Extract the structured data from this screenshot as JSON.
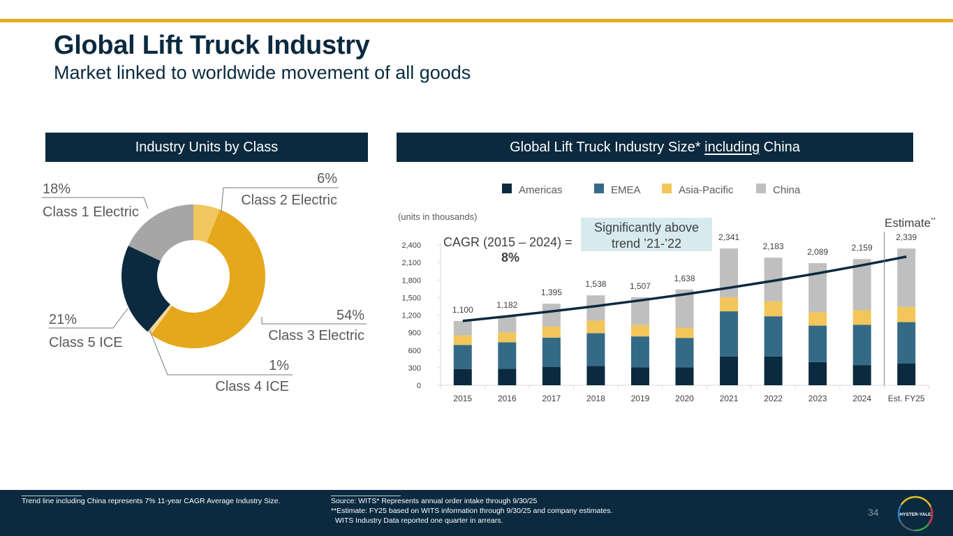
{
  "slide": {
    "title": "Global Lift Truck Industry",
    "subtitle": "Market linked to worldwide movement of all goods",
    "accent_color": "#e2ab23",
    "brand_navy": "#0b2a3f",
    "page_number": "34",
    "logo_text": "HYSTER-YALE"
  },
  "left_panel": {
    "header": "Industry Units by Class"
  },
  "right_panel": {
    "header_prefix": "Global Lift Truck Industry Size* ",
    "header_underlined": "including",
    "header_suffix": " China",
    "units_note": "(units in thousands)",
    "cagr_label": "CAGR (2015 – 2024) =",
    "cagr_value": "8%",
    "callout_line1": "Significantly above",
    "callout_line2": "trend ’21-’22",
    "estimate_label": "Estimate",
    "estimate_marker": "**"
  },
  "footer": {
    "left_note": "Trend line including China represents 7% 11-year CAGR Average Industry Size.",
    "source_line1": "Source: WITS* Represents annual order intake through 9/30/25",
    "source_line2": "**Estimate: FY25 based on WITS information through 9/30/25 and company estimates.",
    "source_line3": "WITS Industry Data reported one quarter in arrears."
  },
  "chart_data": [
    {
      "type": "pie",
      "variant": "donut",
      "title": "Industry Units by Class",
      "unit": "%",
      "slices": [
        {
          "label": "Class 2 Electric",
          "value": 6,
          "display": "6%",
          "color": "#f0c75e"
        },
        {
          "label": "Class 3 Electric",
          "value": 54,
          "display": "54%",
          "color": "#e5a71b"
        },
        {
          "label": "Class 4 ICE",
          "value": 1,
          "display": "1%",
          "color": "#f3d89a"
        },
        {
          "label": "Class 5 ICE",
          "value": 21,
          "display": "21%",
          "color": "#0b2a3f"
        },
        {
          "label": "Class 1 Electric",
          "value": 18,
          "display": "18%",
          "color": "#a6a6a6"
        }
      ]
    },
    {
      "type": "bar",
      "stacked": true,
      "title": "Global Lift Truck Industry Size* including China",
      "ylabel": "(units in thousands)",
      "xlabel": "",
      "categories": [
        "2015",
        "2016",
        "2017",
        "2018",
        "2019",
        "2020",
        "2021",
        "2022",
        "2023",
        "2024",
        "Est. FY25"
      ],
      "ylim": [
        0,
        2400
      ],
      "yticks": [
        0,
        300,
        600,
        900,
        1200,
        1500,
        1800,
        2100,
        2400
      ],
      "ytick_labels": [
        "0",
        "300",
        "600",
        "900",
        "1,200",
        "1,500",
        "1,800",
        "2,100",
        "2,400"
      ],
      "legend": "top-center",
      "grid": false,
      "series": [
        {
          "name": "Americas",
          "color": "#0b2a3f",
          "values": [
            275,
            280,
            315,
            330,
            305,
            305,
            490,
            490,
            395,
            345,
            370
          ]
        },
        {
          "name": "EMEA",
          "color": "#356a87",
          "values": [
            415,
            455,
            500,
            560,
            530,
            505,
            775,
            690,
            625,
            690,
            710
          ]
        },
        {
          "name": "Asia-Pacific",
          "color": "#f2c65a",
          "values": [
            165,
            170,
            190,
            215,
            195,
            175,
            240,
            255,
            230,
            250,
            260
          ]
        },
        {
          "name": "China",
          "color": "#bfbfbf",
          "values": [
            245,
            277,
            390,
            433,
            477,
            653,
            836,
            748,
            839,
            874,
            999
          ]
        }
      ],
      "totals": [
        1100,
        1182,
        1395,
        1538,
        1507,
        1638,
        2341,
        2183,
        2089,
        2159,
        2339
      ],
      "total_labels": [
        "1,100",
        "1,182",
        "1,395",
        "1,538",
        "1,507",
        "1,638",
        "2,341",
        "2,183",
        "2,089",
        "2,159",
        "2,339"
      ],
      "trend_line": {
        "name": "Trend line",
        "color": "#0b2a3f",
        "start_value": 1100,
        "end_value": 2200
      },
      "estimate_divider_after": "2024"
    }
  ]
}
